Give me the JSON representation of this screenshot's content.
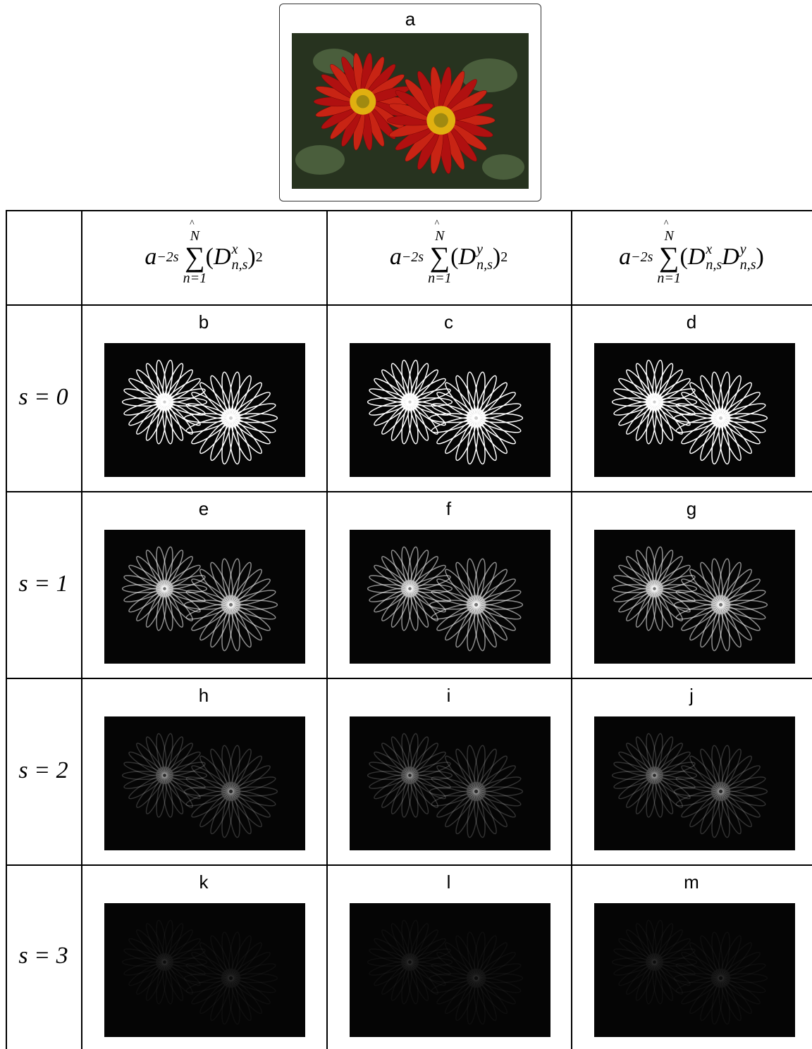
{
  "figure": {
    "label": "a"
  },
  "table": {
    "columns": [
      {
        "coef": "a",
        "coef_exp": "−2s",
        "sum": "∑",
        "upper": "N",
        "lower": "n=1",
        "hat": "^",
        "open": "(",
        "factors": [
          {
            "base": "D",
            "sup": "x",
            "sub": "n,s"
          }
        ],
        "close": ")",
        "power": "2"
      },
      {
        "coef": "a",
        "coef_exp": "−2s",
        "sum": "∑",
        "upper": "N",
        "lower": "n=1",
        "hat": "^",
        "open": "(",
        "factors": [
          {
            "base": "D",
            "sup": "y",
            "sub": "n,s"
          }
        ],
        "close": ")",
        "power": "2"
      },
      {
        "coef": "a",
        "coef_exp": "−2s",
        "sum": "∑",
        "upper": "N",
        "lower": "n=1",
        "hat": "^",
        "open": "(",
        "factors": [
          {
            "base": "D",
            "sup": "x",
            "sub": "n,s"
          },
          {
            "base": "D",
            "sup": "y",
            "sub": "n,s"
          }
        ],
        "close": ")"
      }
    ],
    "rows": [
      {
        "label": "s = 0",
        "cells": [
          "b",
          "c",
          "d"
        ]
      },
      {
        "label": "s = 1",
        "cells": [
          "e",
          "f",
          "g"
        ]
      },
      {
        "label": "s = 2",
        "cells": [
          "h",
          "i",
          "j"
        ]
      },
      {
        "label": "s = 3",
        "cells": [
          "k",
          "l",
          "m"
        ]
      }
    ]
  }
}
